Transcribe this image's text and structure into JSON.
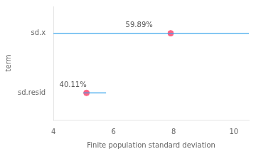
{
  "chart_data": {
    "type": "interval",
    "xlabel": "Finite population standard deviation",
    "ylabel": "term",
    "x": [
      7.9,
      5.1
    ],
    "y": [
      1,
      0
    ],
    "lower": [
      4.0,
      5.0
    ],
    "upper": [
      10.5,
      5.75
    ],
    "annotations": [
      {
        "text": "59.89%",
        "x": 6.4,
        "y": 1.07
      },
      {
        "text": "40.11%",
        "x": 4.2,
        "y": 0.07
      }
    ],
    "xlim": [
      4,
      10.5
    ],
    "xticks": [
      4,
      6,
      8,
      10
    ],
    "ylim": [
      -0.45,
      1.45
    ],
    "yticks": [
      {
        "value": 0,
        "label": "sd.resid"
      },
      {
        "value": 1,
        "label": "sd.x"
      }
    ],
    "grid": false
  }
}
